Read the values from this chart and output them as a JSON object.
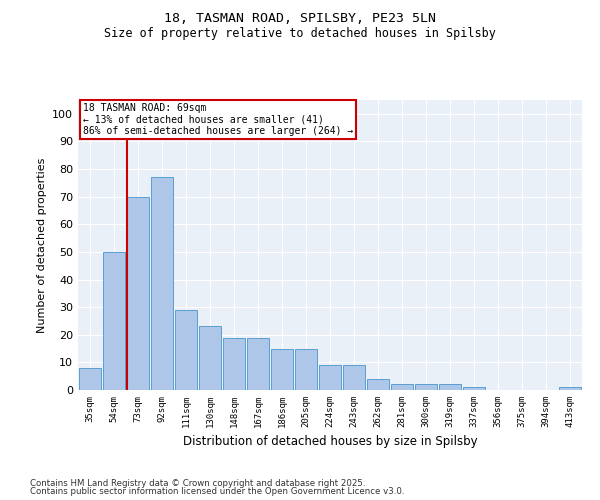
{
  "title1": "18, TASMAN ROAD, SPILSBY, PE23 5LN",
  "title2": "Size of property relative to detached houses in Spilsby",
  "xlabel": "Distribution of detached houses by size in Spilsby",
  "ylabel": "Number of detached properties",
  "categories": [
    "35sqm",
    "54sqm",
    "73sqm",
    "92sqm",
    "111sqm",
    "130sqm",
    "148sqm",
    "167sqm",
    "186sqm",
    "205sqm",
    "224sqm",
    "243sqm",
    "262sqm",
    "281sqm",
    "300sqm",
    "319sqm",
    "337sqm",
    "356sqm",
    "375sqm",
    "394sqm",
    "413sqm"
  ],
  "values": [
    8,
    50,
    70,
    77,
    29,
    23,
    19,
    19,
    15,
    15,
    9,
    9,
    4,
    2,
    2,
    2,
    1,
    0,
    0,
    0,
    1
  ],
  "bar_color": "#aec6e8",
  "bar_edge_color": "#5a9fd4",
  "vline_x_index": 2,
  "vline_color": "#cc0000",
  "annotation_box_color": "#cc0000",
  "annotation_lines": [
    "18 TASMAN ROAD: 69sqm",
    "← 13% of detached houses are smaller (41)",
    "86% of semi-detached houses are larger (264) →"
  ],
  "ylim": [
    0,
    105
  ],
  "yticks": [
    0,
    10,
    20,
    30,
    40,
    50,
    60,
    70,
    80,
    90,
    100
  ],
  "bg_color": "#eaf0f8",
  "footnote1": "Contains HM Land Registry data © Crown copyright and database right 2025.",
  "footnote2": "Contains public sector information licensed under the Open Government Licence v3.0."
}
